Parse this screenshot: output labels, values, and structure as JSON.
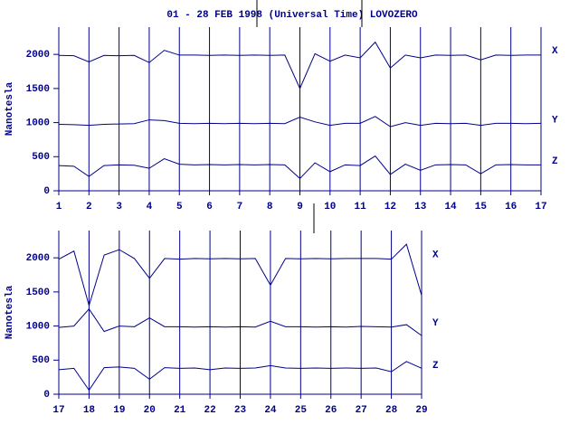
{
  "chart_data": [
    {
      "type": "line",
      "title": "01 - 28 FEB 1998 (Universal Time) LOVOZERO",
      "y_label": "Nanotesla",
      "x": [
        1,
        1.5,
        2,
        2.5,
        3,
        3.5,
        4,
        4.5,
        5,
        5.5,
        6,
        6.5,
        7,
        7.5,
        8,
        8.5,
        9,
        9.5,
        10,
        10.5,
        11,
        11.5,
        12,
        12.5,
        13,
        13.5,
        14,
        14.5,
        15,
        15.5,
        16,
        16.5,
        17
      ],
      "series": [
        {
          "name": "X",
          "color": "#00008b",
          "values": [
            1985,
            1980,
            1890,
            1985,
            1980,
            1985,
            1880,
            2060,
            1990,
            1990,
            1985,
            1990,
            1985,
            1990,
            1985,
            1990,
            1500,
            2010,
            1900,
            1990,
            1950,
            2180,
            1800,
            1990,
            1950,
            1990,
            1985,
            1990,
            1920,
            1990,
            1985,
            1990,
            1990
          ]
        },
        {
          "name": "Y",
          "color": "#00008b",
          "values": [
            975,
            970,
            960,
            975,
            980,
            985,
            1040,
            1030,
            990,
            985,
            990,
            985,
            990,
            985,
            990,
            985,
            1080,
            1010,
            960,
            990,
            990,
            1090,
            940,
            1000,
            960,
            990,
            985,
            990,
            960,
            990,
            990,
            985,
            990
          ]
        },
        {
          "name": "Z",
          "color": "#00008b",
          "values": [
            370,
            360,
            210,
            370,
            380,
            375,
            330,
            470,
            390,
            380,
            385,
            380,
            385,
            380,
            385,
            380,
            180,
            410,
            280,
            380,
            370,
            510,
            240,
            390,
            300,
            380,
            385,
            380,
            250,
            380,
            385,
            380,
            380
          ]
        }
      ],
      "xlim": [
        1,
        17
      ],
      "xticks": [
        1,
        2,
        3,
        4,
        5,
        6,
        7,
        8,
        9,
        10,
        11,
        12,
        13,
        14,
        15,
        16,
        17
      ],
      "ylim": [
        0,
        2400
      ],
      "yticks": [
        0,
        500,
        1000,
        1500,
        2000
      ],
      "grid": true
    },
    {
      "type": "line",
      "y_label": "Nanotesla",
      "x": [
        17,
        17.5,
        18,
        18.5,
        19,
        19.5,
        20,
        20.5,
        21,
        21.5,
        22,
        22.5,
        23,
        23.5,
        24,
        24.5,
        25,
        25.5,
        26,
        26.5,
        27,
        27.5,
        28,
        28.5,
        29
      ],
      "series": [
        {
          "name": "X",
          "color": "#00008b",
          "values": [
            1980,
            2100,
            1300,
            2040,
            2120,
            1990,
            1700,
            1990,
            1980,
            1990,
            1985,
            1990,
            1985,
            1990,
            1600,
            1990,
            1985,
            1990,
            1985,
            1990,
            1990,
            1990,
            1980,
            2200,
            1450
          ]
        },
        {
          "name": "Y",
          "color": "#00008b",
          "values": [
            980,
            1000,
            1250,
            920,
            1000,
            990,
            1120,
            990,
            990,
            985,
            990,
            985,
            990,
            985,
            1070,
            990,
            990,
            985,
            990,
            985,
            995,
            990,
            985,
            1020,
            860
          ]
        },
        {
          "name": "Z",
          "color": "#00008b",
          "values": [
            360,
            380,
            60,
            390,
            400,
            380,
            220,
            390,
            380,
            385,
            360,
            385,
            380,
            385,
            420,
            385,
            380,
            385,
            380,
            385,
            380,
            385,
            330,
            480,
            380
          ]
        }
      ],
      "xlim": [
        17,
        29
      ],
      "xticks": [
        17,
        18,
        19,
        20,
        21,
        22,
        23,
        24,
        25,
        26,
        27,
        28,
        29
      ],
      "ylim": [
        0,
        2400
      ],
      "yticks": [
        0,
        500,
        1000,
        1500,
        2000
      ],
      "grid": true
    }
  ]
}
